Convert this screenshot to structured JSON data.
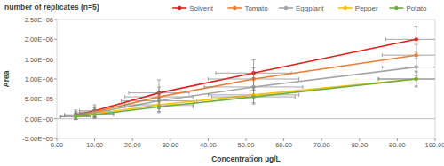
{
  "chart_data": {
    "type": "line",
    "title": "number of replicates (n=5)",
    "x_label": "Concentration µg/L",
    "y_label": "Area",
    "x": [
      5,
      10,
      27,
      52,
      95
    ],
    "series": [
      {
        "name": "Solvent",
        "color": "#e0201b",
        "values": [
          100000,
          200000,
          650000,
          1150000,
          2000000
        ],
        "errors": [
          120000,
          150000,
          330000,
          330000,
          330000
        ],
        "x_errors": [
          3,
          4,
          8,
          10,
          8
        ]
      },
      {
        "name": "Tomato",
        "color": "#ed7d31",
        "values": [
          90000,
          170000,
          550000,
          1000000,
          1600000
        ],
        "errors": [
          100000,
          130000,
          250000,
          280000,
          270000
        ],
        "x_errors": [
          3,
          4,
          9,
          12,
          9
        ]
      },
      {
        "name": "Eggplant",
        "color": "#a5a5a5",
        "values": [
          80000,
          150000,
          450000,
          800000,
          1300000
        ],
        "errors": [
          90000,
          120000,
          200000,
          230000,
          220000
        ],
        "x_errors": [
          3,
          5,
          10,
          13,
          9
        ]
      },
      {
        "name": "Pepper",
        "color": "#ffc000",
        "values": [
          60000,
          120000,
          350000,
          600000,
          1000000
        ],
        "errors": [
          80000,
          100000,
          170000,
          200000,
          200000
        ],
        "x_errors": [
          4,
          5,
          9,
          12,
          10
        ]
      },
      {
        "name": "Potato",
        "color": "#70ad47",
        "values": [
          50000,
          100000,
          300000,
          550000,
          1000000
        ],
        "errors": [
          70000,
          90000,
          150000,
          180000,
          180000
        ],
        "x_errors": [
          4,
          5,
          9,
          11,
          10
        ]
      }
    ],
    "xlim": [
      0,
      100
    ],
    "xticks": [
      {
        "value": 0,
        "label": "0.00"
      },
      {
        "value": 10,
        "label": "10.00"
      },
      {
        "value": 20,
        "label": "20.00"
      },
      {
        "value": 30,
        "label": "30.00"
      },
      {
        "value": 40,
        "label": "40.00"
      },
      {
        "value": 50,
        "label": "50.00"
      },
      {
        "value": 60,
        "label": "60.00"
      },
      {
        "value": 70,
        "label": "70.00"
      },
      {
        "value": 80,
        "label": "80.00"
      },
      {
        "value": 90,
        "label": "90.00"
      },
      {
        "value": 100,
        "label": "100.00"
      }
    ],
    "ylim": [
      -500000,
      2500000
    ],
    "yticks": [
      {
        "value": -500000,
        "label": "-5.00E+05"
      },
      {
        "value": 0,
        "label": "0.00E+00"
      },
      {
        "value": 500000,
        "label": "5.00E+05"
      },
      {
        "value": 1000000,
        "label": "1.00E+06"
      },
      {
        "value": 1500000,
        "label": "1.50E+06"
      },
      {
        "value": 2000000,
        "label": "2.00E+06"
      },
      {
        "value": 2500000,
        "label": "2.50E+06"
      }
    ],
    "grid": false,
    "legend": "top-right",
    "marker": "circle"
  }
}
